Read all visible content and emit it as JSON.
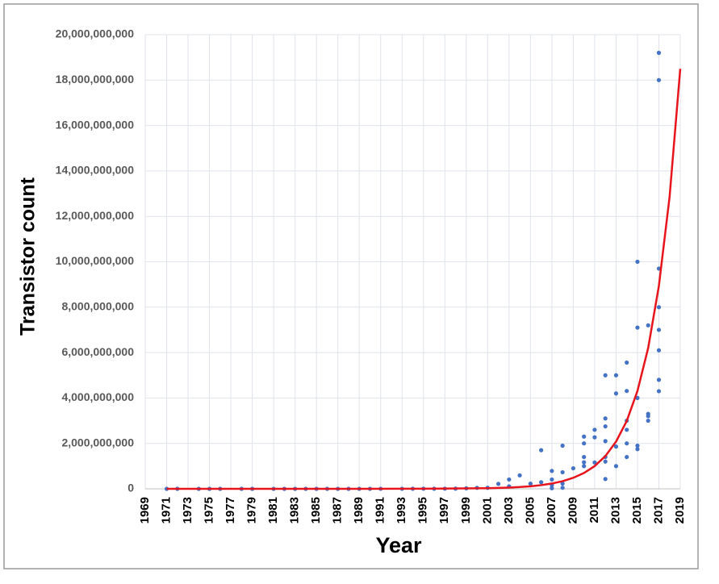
{
  "chart_data": {
    "type": "scatter",
    "x_label": "Year",
    "y_label": "Transistor count",
    "xlim": [
      1969,
      2019
    ],
    "xticks": [
      1969,
      1971,
      1973,
      1975,
      1977,
      1979,
      1981,
      1983,
      1985,
      1987,
      1989,
      1991,
      1993,
      1995,
      1997,
      1999,
      2001,
      2003,
      2005,
      2007,
      2009,
      2011,
      2013,
      2015,
      2017,
      2019
    ],
    "ylim": [
      0,
      20000000000
    ],
    "yticks": [
      0,
      {
        "value": 2000000000,
        "label": "2,000,000,000"
      },
      {
        "value": 4000000000,
        "label": "4,000,000,000"
      },
      {
        "value": 6000000000,
        "label": "6,000,000,000"
      },
      {
        "value": 8000000000,
        "label": "8,000,000,000"
      },
      {
        "value": 10000000000,
        "label": "10,000,000,000"
      },
      {
        "value": 12000000000,
        "label": "12,000,000,000"
      },
      {
        "value": 14000000000,
        "label": "14,000,000,000"
      },
      {
        "value": 16000000000,
        "label": "16,000,000,000"
      },
      {
        "value": 18000000000,
        "label": "18,000,000,000"
      },
      {
        "value": 20000000000,
        "label": "20,000,000,000"
      }
    ],
    "grid": true,
    "series": [
      {
        "color": "#4472c4",
        "x": [
          1971,
          1972,
          1974,
          1975,
          1976,
          1978,
          1979,
          1981,
          1982,
          1983,
          1984,
          1985,
          1986,
          1987,
          1988,
          1989,
          1990,
          1991,
          1993,
          1994,
          1995,
          1996,
          1997,
          1998,
          1999,
          2000,
          2001,
          2002,
          2003,
          2003,
          2004,
          2005,
          2006,
          2006,
          2007,
          2007,
          2007,
          2007,
          2008,
          2008,
          2008,
          2008,
          2009,
          2010,
          2010,
          2010,
          2010,
          2010,
          2011,
          2011,
          2011,
          2012,
          2012,
          2012,
          2012,
          2012,
          2012,
          2012,
          2013,
          2013,
          2013,
          2013,
          2014,
          2014,
          2014,
          2014,
          2014,
          2014,
          2015,
          2015,
          2015,
          2015,
          2015,
          2016,
          2016,
          2016,
          2016,
          2017,
          2017,
          2017,
          2017,
          2017,
          2017,
          2017,
          2017
        ],
        "values": [
          2300,
          3500,
          4500,
          3510,
          6500,
          29000,
          68000,
          21000,
          134000,
          100000,
          190000,
          275000,
          200000,
          553000,
          250000,
          1180000,
          1000000,
          1350000,
          3100000,
          3300000,
          5500000,
          4300000,
          7500000,
          9500000,
          21300000,
          42000000,
          45000000,
          220000000,
          410000000,
          105900000,
          592000000,
          228000000,
          1700000000,
          291000000,
          789000000,
          410000000,
          169000000,
          26000000,
          1900000000,
          731000000,
          230000000,
          47000000,
          904000000,
          2300000000,
          2000000000,
          1400000000,
          1170000000,
          1000000000,
          2600000000,
          2270000000,
          1160000000,
          5000000000,
          3100000000,
          2750000000,
          2100000000,
          1400000000,
          1200000000,
          432000000,
          5000000000,
          4200000000,
          1860000000,
          1000000000,
          5560000000,
          4310000000,
          3000000000,
          2600000000,
          2000000000,
          1400000000,
          10000000000,
          7100000000,
          4000000000,
          1900000000,
          1750000000,
          7200000000,
          3300000000,
          3200000000,
          3000000000,
          19200000000,
          18000000000,
          9700000000,
          8000000000,
          7000000000,
          6100000000,
          4800000000,
          4300000000
        ]
      },
      {
        "color": "#e8141c",
        "type": "line",
        "x": [
          1971,
          1977,
          1983,
          1989,
          1995,
          2001,
          2002,
          2003,
          2004,
          2005,
          2006,
          2007,
          2008,
          2009,
          2010,
          2011,
          2012,
          2013,
          2014,
          2015,
          2016,
          2017,
          2018,
          2019
        ],
        "values": [
          480,
          4300,
          38000,
          340000,
          3000000,
          26000000,
          38000000,
          54000000,
          78000000,
          113000000,
          162000000,
          234000000,
          336000000,
          484000000,
          697000000,
          1000000000,
          1440000000,
          2080000000,
          2990000000,
          4310000000,
          6200000000,
          8930000000,
          12850000000,
          18500000000
        ]
      }
    ]
  }
}
